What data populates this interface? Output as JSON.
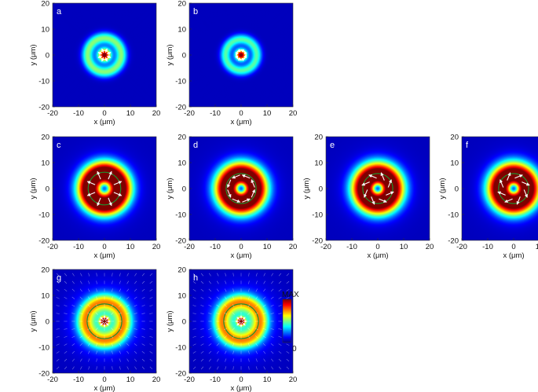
{
  "chart_data": {
    "type": "heatmap",
    "xlabel": "x (μm)",
    "ylabel": "y (μm)",
    "xlim": [
      -20,
      20
    ],
    "ylim": [
      -20,
      20
    ],
    "xticks": [
      -20,
      -10,
      0,
      10,
      20
    ],
    "yticks": [
      20,
      10,
      0,
      -10,
      -20
    ],
    "panels": [
      {
        "label": "a",
        "profile": "spot",
        "ring_radius": 0,
        "ring_width": 2.5,
        "halo_radius": 6.5,
        "halo_width": 2.2,
        "halo_level": 0.45,
        "arrows": "radial",
        "wide_halo": 0,
        "green_circle": false
      },
      {
        "label": "b",
        "profile": "spot",
        "ring_radius": 0,
        "ring_width": 2.2,
        "halo_radius": 6.0,
        "halo_width": 2.0,
        "halo_level": 0.4,
        "arrows": "azimuthal",
        "wide_halo": 0,
        "green_circle": false
      },
      {
        "label": "c",
        "profile": "ring",
        "ring_radius": 5.5,
        "ring_width": 4.0,
        "halo_radius": 0,
        "halo_width": 0,
        "halo_level": 0,
        "arrows": "radial",
        "wide_halo": 0.18,
        "green_circle": true
      },
      {
        "label": "d",
        "profile": "ring",
        "ring_radius": 5.0,
        "ring_width": 4.0,
        "halo_radius": 0,
        "halo_width": 0,
        "halo_level": 0,
        "arrows": "azimuthal",
        "wide_halo": 0.18,
        "green_circle": true
      },
      {
        "label": "e",
        "profile": "ring",
        "ring_radius": 5.0,
        "ring_width": 4.0,
        "halo_radius": 0,
        "halo_width": 0,
        "halo_level": 0,
        "arrows": "spiral",
        "wide_halo": 0.18,
        "green_circle": true
      },
      {
        "label": "f",
        "profile": "ring",
        "ring_radius": 5.0,
        "ring_width": 4.0,
        "halo_radius": 0,
        "halo_width": 0,
        "halo_level": 0,
        "arrows": "spiral-reverse",
        "wide_halo": 0.18,
        "green_circle": true
      },
      {
        "label": "g",
        "profile": "spot-ring",
        "ring_radius": 0,
        "ring_width": 1.6,
        "halo_radius": 7.5,
        "halo_width": 3.2,
        "halo_level": 0.5,
        "arrows": "field",
        "wide_halo": 0.3,
        "green_circle": true
      },
      {
        "label": "h",
        "profile": "spot-ring",
        "ring_radius": 0,
        "ring_width": 1.4,
        "halo_radius": 7.5,
        "halo_width": 3.2,
        "halo_level": 0.5,
        "arrows": "field",
        "wide_halo": 0.3,
        "green_circle": true
      }
    ],
    "colorbar": {
      "max_label": "MAX",
      "min_label": "0",
      "colormap": "jet"
    }
  }
}
